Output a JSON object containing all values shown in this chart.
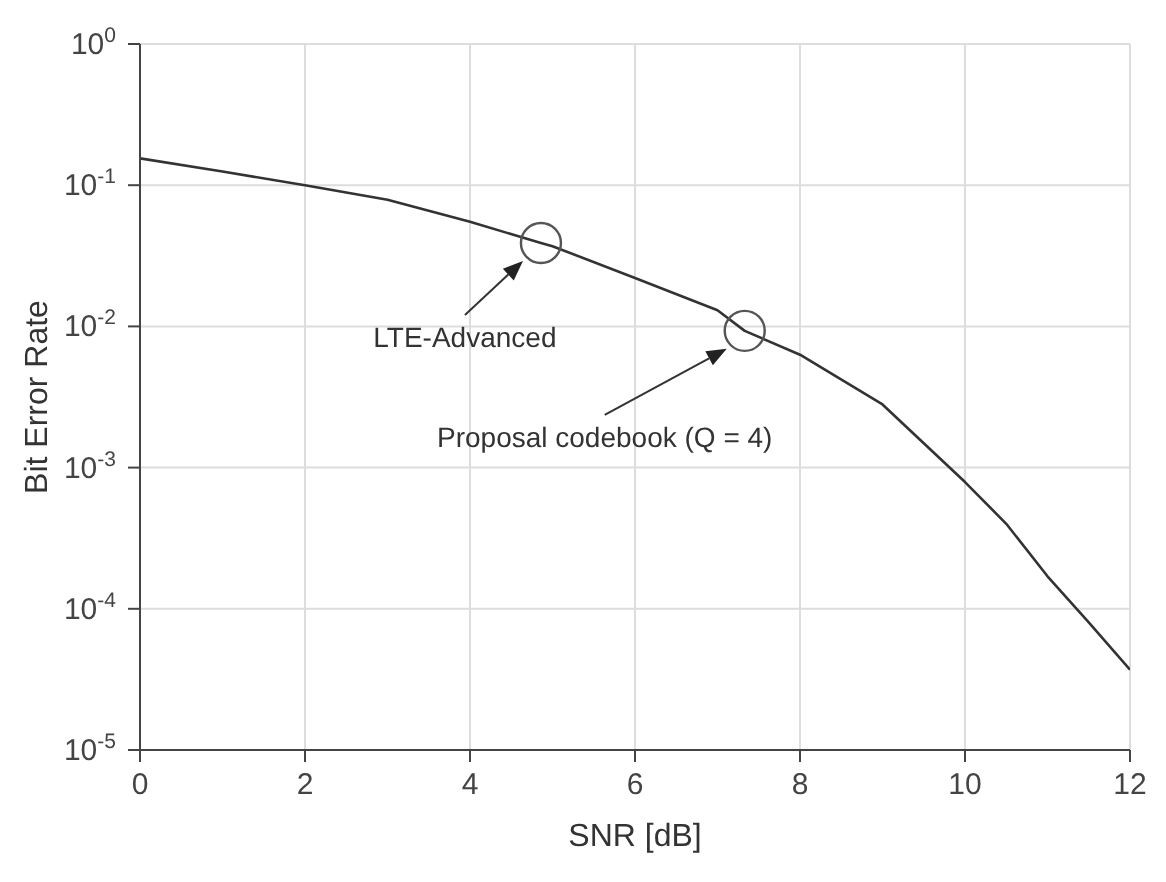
{
  "chart_data": {
    "type": "line",
    "xlabel": "SNR [dB]",
    "ylabel": "Bit Error Rate",
    "log": "y",
    "grid": true,
    "marker": "none",
    "line_style": "solid",
    "xlim": [
      0,
      12
    ],
    "xticks": [
      0,
      2,
      4,
      6,
      8,
      10,
      12
    ],
    "ylim": [
      1e-05,
      1
    ],
    "yticks": [
      {
        "value": 1e-05,
        "label": "10$^{-5}$"
      },
      {
        "value": 0.0001,
        "label": "10$^{-4}$"
      },
      {
        "value": 0.001,
        "label": "10$^{-3}$"
      },
      {
        "value": 0.01,
        "label": "10$^{-2}$"
      },
      {
        "value": 0.1,
        "label": "10$^{-1}$"
      },
      {
        "value": 1,
        "label": "10$^{0}$"
      }
    ],
    "series": [
      {
        "color": "#333333",
        "x": [
          0,
          1,
          2,
          3,
          4,
          4.86,
          5,
          6,
          7,
          7.33,
          8,
          9,
          10,
          10.5,
          11,
          11.5,
          12
        ],
        "values": [
          0.155,
          0.125,
          0.1,
          0.079,
          0.055,
          0.039,
          0.037,
          0.022,
          0.013,
          0.0093,
          0.0063,
          0.0028,
          0.00079,
          0.0004,
          0.00017,
          8e-05,
          3.7e-05
        ]
      },
      {
        "type": "scatter",
        "color": "#555555",
        "marker": "circle",
        "x": [
          4.86,
          7.33
        ],
        "values": [
          0.039,
          0.0093
        ]
      }
    ],
    "annotations": [
      "LTE-Advanced",
      "Proposal codebook (Q = 4)"
    ]
  }
}
